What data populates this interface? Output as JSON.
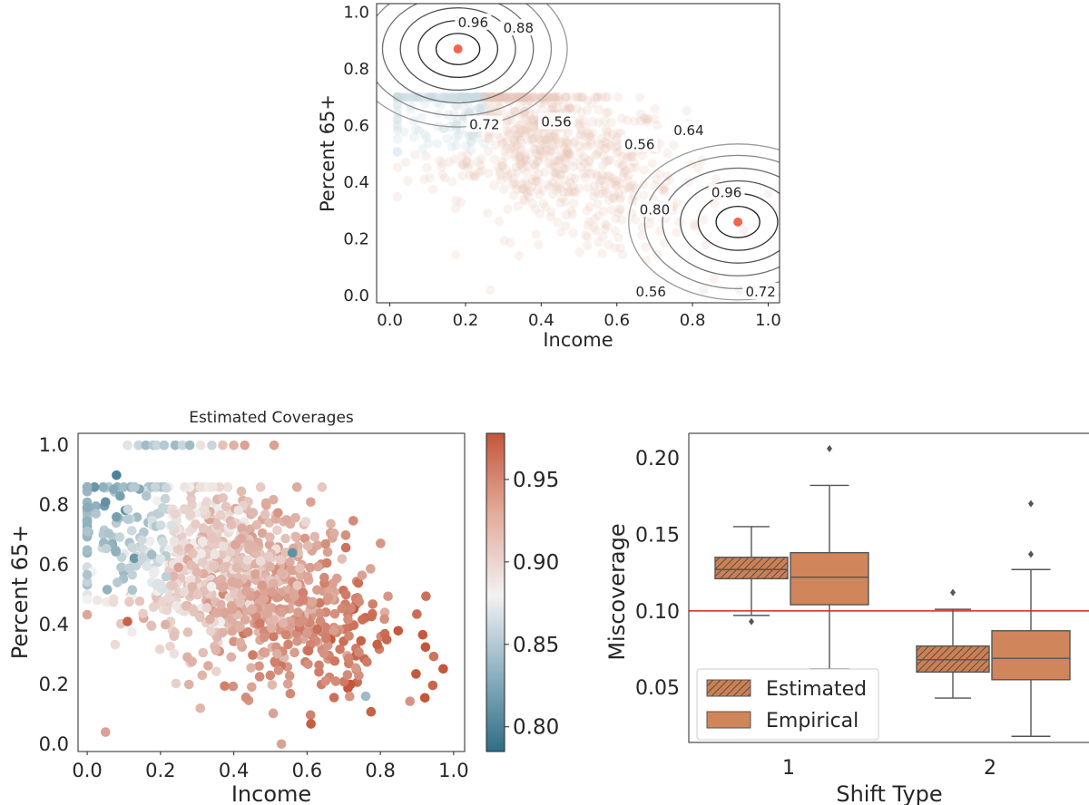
{
  "chart_data": [
    {
      "id": "contour",
      "type": "scatter",
      "title": "",
      "xlabel": "Income",
      "ylabel": "Percent 65+",
      "xlim": [
        0.0,
        1.0
      ],
      "ylim": [
        0.0,
        1.0
      ],
      "xticks": [
        "0.0",
        "0.2",
        "0.4",
        "0.6",
        "0.8",
        "1.0"
      ],
      "yticks": [
        "0.0",
        "0.2",
        "0.4",
        "0.6",
        "0.8",
        "1.0"
      ],
      "grid": false,
      "centers": [
        {
          "x": 0.18,
          "y": 0.87,
          "color": "#f0674e"
        },
        {
          "x": 0.92,
          "y": 0.26,
          "color": "#f0674e"
        }
      ],
      "contour_levels": [
        0.96,
        0.88,
        0.8,
        0.72,
        0.64,
        0.56
      ],
      "contour_labels": [
        {
          "text": "0.96",
          "x": 0.22,
          "y": 0.96
        },
        {
          "text": "0.88",
          "x": 0.34,
          "y": 0.94
        },
        {
          "text": "0.72",
          "x": 0.25,
          "y": 0.6
        },
        {
          "text": "0.56",
          "x": 0.44,
          "y": 0.61
        },
        {
          "text": "0.56",
          "x": 0.66,
          "y": 0.53
        },
        {
          "text": "0.64",
          "x": 0.79,
          "y": 0.58
        },
        {
          "text": "0.96",
          "x": 0.89,
          "y": 0.36
        },
        {
          "text": "0.80",
          "x": 0.7,
          "y": 0.3
        },
        {
          "text": "0.56",
          "x": 0.69,
          "y": 0.01
        },
        {
          "text": "0.72",
          "x": 0.98,
          "y": 0.01
        }
      ],
      "point_color": "#e7c4b8"
    },
    {
      "id": "coverage",
      "type": "scatter",
      "title": "Estimated Coverages",
      "xlabel": "Income",
      "ylabel": "Percent 65+",
      "xlim": [
        0.0,
        1.0
      ],
      "ylim": [
        0.0,
        1.0
      ],
      "xticks": [
        "0.0",
        "0.2",
        "0.4",
        "0.6",
        "0.8",
        "1.0"
      ],
      "yticks": [
        "0.0",
        "0.2",
        "0.4",
        "0.6",
        "0.8",
        "1.0"
      ],
      "grid": false,
      "colorbar": {
        "min": 0.785,
        "max": 0.978,
        "ticks": [
          "0.80",
          "0.85",
          "0.90",
          "0.95"
        ],
        "low_color": "#2e6e87",
        "mid_color": "#f2f2f2",
        "high_color": "#c4563a"
      },
      "top_row": [
        {
          "x": 0.11,
          "c": 0.87
        },
        {
          "x": 0.14,
          "c": 0.86
        },
        {
          "x": 0.16,
          "c": 0.84
        },
        {
          "x": 0.18,
          "c": 0.85
        },
        {
          "x": 0.19,
          "c": 0.86
        },
        {
          "x": 0.21,
          "c": 0.85
        },
        {
          "x": 0.24,
          "c": 0.84
        },
        {
          "x": 0.26,
          "c": 0.86
        },
        {
          "x": 0.28,
          "c": 0.84
        },
        {
          "x": 0.31,
          "c": 0.89
        },
        {
          "x": 0.34,
          "c": 0.86
        },
        {
          "x": 0.37,
          "c": 0.91
        },
        {
          "x": 0.4,
          "c": 0.92
        },
        {
          "x": 0.43,
          "c": 0.93
        },
        {
          "x": 0.51,
          "c": 0.93
        }
      ],
      "highlights": [
        {
          "x": 0.08,
          "y": 0.9,
          "c": 0.8
        },
        {
          "x": 0.05,
          "y": 0.81,
          "c": 0.81
        },
        {
          "x": 0.09,
          "y": 0.83,
          "c": 0.82
        },
        {
          "x": 0.08,
          "y": 0.76,
          "c": 0.82
        },
        {
          "x": 0.13,
          "y": 0.86,
          "c": 0.85
        },
        {
          "x": 0.11,
          "y": 0.41,
          "c": 0.97
        },
        {
          "x": 0.56,
          "y": 0.64,
          "c": 0.81
        },
        {
          "x": 0.61,
          "y": 0.81,
          "c": 0.93
        },
        {
          "x": 0.76,
          "y": 0.16,
          "c": 0.84
        },
        {
          "x": 0.05,
          "y": 0.04,
          "c": 0.93
        },
        {
          "x": 0.53,
          "y": 0.0,
          "c": 0.93
        }
      ]
    },
    {
      "id": "boxplot",
      "type": "box",
      "title": "",
      "xlabel": "Shift Type",
      "ylabel": "Miscoverage",
      "categories": [
        "1",
        "2"
      ],
      "ylim": [
        0.014,
        0.216
      ],
      "yticks": [
        0.05,
        0.1,
        0.15,
        0.2
      ],
      "ytick_labels": [
        "0.05",
        "0.10",
        "0.15",
        "0.20"
      ],
      "reference_line": {
        "y": 0.1,
        "color": "#e0201b"
      },
      "series": [
        {
          "name": "Estimated",
          "hatched": true,
          "color": "#c98156",
          "boxes": [
            {
              "min": 0.097,
              "q1": 0.121,
              "median": 0.127,
              "q3": 0.135,
              "max": 0.155,
              "outliers": [
                0.093
              ]
            },
            {
              "min": 0.043,
              "q1": 0.06,
              "median": 0.068,
              "q3": 0.077,
              "max": 0.101,
              "outliers": [
                0.112
              ]
            }
          ]
        },
        {
          "name": "Empirical",
          "hatched": false,
          "color": "#d0855a",
          "boxes": [
            {
              "min": 0.062,
              "q1": 0.104,
              "median": 0.122,
              "q3": 0.138,
              "max": 0.182,
              "outliers": [
                0.206
              ]
            },
            {
              "min": 0.018,
              "q1": 0.055,
              "median": 0.069,
              "q3": 0.087,
              "max": 0.127,
              "outliers": [
                0.137,
                0.17
              ]
            }
          ]
        }
      ]
    }
  ]
}
